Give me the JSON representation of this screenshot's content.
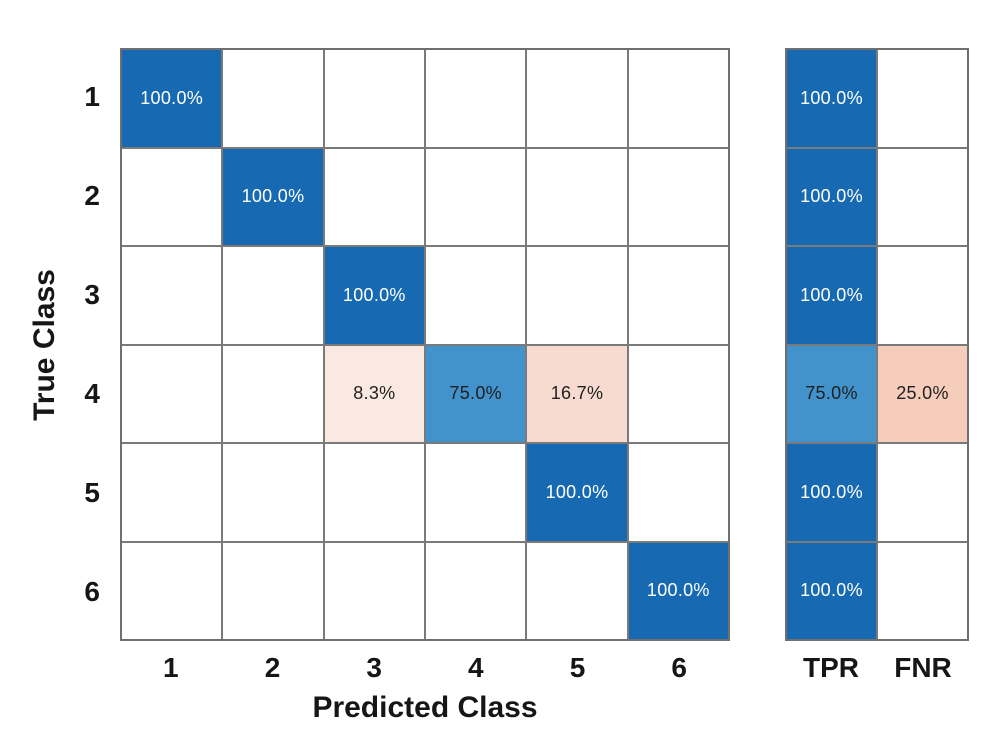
{
  "chart_data": {
    "type": "heatmap",
    "subtype": "confusion-matrix-row-normalized",
    "title": "",
    "xlabel": "Predicted Class",
    "ylabel": "True Class",
    "x_tick_labels": [
      "1",
      "2",
      "3",
      "4",
      "5",
      "6"
    ],
    "y_tick_labels": [
      "1",
      "2",
      "3",
      "4",
      "5",
      "6"
    ],
    "summary_column_labels": [
      "TPR",
      "FNR"
    ],
    "values_percent": [
      [
        100.0,
        0,
        0,
        0,
        0,
        0
      ],
      [
        0,
        100.0,
        0,
        0,
        0,
        0
      ],
      [
        0,
        0,
        100.0,
        0,
        0,
        0
      ],
      [
        0,
        0,
        8.3,
        75.0,
        16.7,
        0
      ],
      [
        0,
        0,
        0,
        0,
        100.0,
        0
      ],
      [
        0,
        0,
        0,
        0,
        0,
        100.0
      ]
    ],
    "tpr_percent": [
      100.0,
      100.0,
      100.0,
      75.0,
      100.0,
      100.0
    ],
    "fnr_percent": [
      0,
      0,
      0,
      25.0,
      0,
      0
    ],
    "matrix_cells": [
      [
        {
          "label": "100.0%",
          "bg": "blue_full",
          "fg": "light"
        },
        null,
        null,
        null,
        null,
        null
      ],
      [
        null,
        {
          "label": "100.0%",
          "bg": "blue_full",
          "fg": "light"
        },
        null,
        null,
        null,
        null
      ],
      [
        null,
        null,
        {
          "label": "100.0%",
          "bg": "blue_full",
          "fg": "light"
        },
        null,
        null,
        null
      ],
      [
        null,
        null,
        {
          "label": "8.3%",
          "bg": "pink_light",
          "fg": "dark"
        },
        {
          "label": "75.0%",
          "bg": "blue_75",
          "fg": "dark"
        },
        {
          "label": "16.7%",
          "bg": "pink_medium",
          "fg": "dark"
        },
        null
      ],
      [
        null,
        null,
        null,
        null,
        {
          "label": "100.0%",
          "bg": "blue_full",
          "fg": "light"
        },
        null
      ],
      [
        null,
        null,
        null,
        null,
        null,
        {
          "label": "100.0%",
          "bg": "blue_full",
          "fg": "light"
        }
      ]
    ],
    "tpr_cells": [
      {
        "label": "100.0%",
        "bg": "blue_full",
        "fg": "light"
      },
      {
        "label": "100.0%",
        "bg": "blue_full",
        "fg": "light"
      },
      {
        "label": "100.0%",
        "bg": "blue_full",
        "fg": "light"
      },
      {
        "label": "75.0%",
        "bg": "blue_75",
        "fg": "dark"
      },
      {
        "label": "100.0%",
        "bg": "blue_full",
        "fg": "light"
      },
      {
        "label": "100.0%",
        "bg": "blue_full",
        "fg": "light"
      }
    ],
    "fnr_cells": [
      null,
      null,
      null,
      {
        "label": "25.0%",
        "bg": "pink_strong",
        "fg": "dark"
      },
      null,
      null
    ],
    "colors": {
      "background": "#ffffff",
      "grid_line": "#7a7a7a",
      "outer_border": "#6f6f6f",
      "empty_cell": "#ffffff",
      "axis_text": "#161616",
      "text_dark": "#1f1f1f",
      "text_light": "#ffffff",
      "blue_full": "#176ab1",
      "blue_75": "#4292cb",
      "pink_light": "#fae9e1",
      "pink_medium": "#f8dbd0",
      "pink_strong": "#f6ccba"
    },
    "layout_hints": {
      "grid": "on",
      "legend": "none",
      "summary_panel_position": "right"
    }
  }
}
